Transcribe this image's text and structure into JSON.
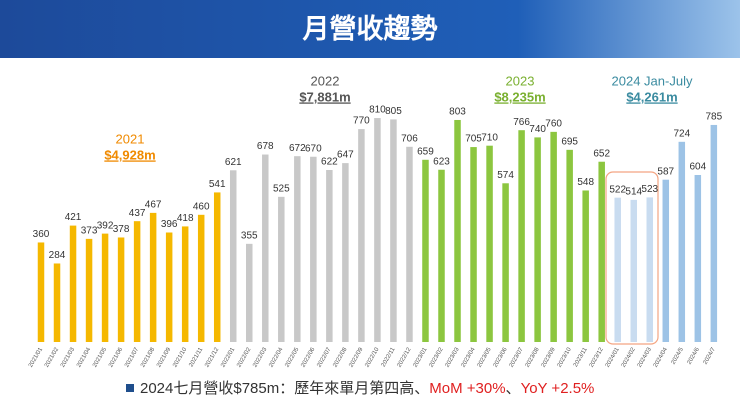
{
  "chart_data": {
    "type": "bar",
    "title": "月營收趨勢",
    "categories": [
      "2021/01",
      "2021/02",
      "2021/03",
      "2021/04",
      "2021/05",
      "2021/06",
      "2021/07",
      "2021/08",
      "2021/09",
      "2021/10",
      "2021/11",
      "2021/12",
      "2022/01",
      "2022/02",
      "2022/03",
      "2022/04",
      "2022/05",
      "2022/06",
      "2022/07",
      "2022/08",
      "2022/09",
      "2022/10",
      "2022/11",
      "2022/12",
      "2023/01",
      "2023/02",
      "2023/03",
      "2023/04",
      "2023/05",
      "2023/06",
      "2023/07",
      "2023/08",
      "2023/09",
      "2023/10",
      "2023/11",
      "2023/12",
      "2024/01",
      "2024/02",
      "2024/03",
      "2024/04",
      "2024/5",
      "2024/6",
      "2024/7"
    ],
    "values": [
      360,
      284,
      421,
      373,
      392,
      378,
      437,
      467,
      396,
      418,
      460,
      541,
      621,
      355,
      678,
      525,
      672,
      670,
      622,
      647,
      770,
      810,
      805,
      706,
      659,
      623,
      803,
      705,
      710,
      574,
      766,
      740,
      760,
      695,
      548,
      652,
      522,
      514,
      523,
      587,
      724,
      604,
      785
    ],
    "colors": [
      "#f5b800",
      "#f5b800",
      "#f5b800",
      "#f5b800",
      "#f5b800",
      "#f5b800",
      "#f5b800",
      "#f5b800",
      "#f5b800",
      "#f5b800",
      "#f5b800",
      "#f5b800",
      "#c8c8c8",
      "#c8c8c8",
      "#c8c8c8",
      "#c8c8c8",
      "#c8c8c8",
      "#c8c8c8",
      "#c8c8c8",
      "#c8c8c8",
      "#c8c8c8",
      "#c8c8c8",
      "#c8c8c8",
      "#c8c8c8",
      "#8cc63f",
      "#8cc63f",
      "#8cc63f",
      "#8cc63f",
      "#8cc63f",
      "#8cc63f",
      "#8cc63f",
      "#8cc63f",
      "#8cc63f",
      "#8cc63f",
      "#8cc63f",
      "#8cc63f",
      "#c9dcf0",
      "#c9dcf0",
      "#c9dcf0",
      "#9dc3e6",
      "#9dc3e6",
      "#9dc3e6",
      "#9dc3e6"
    ],
    "annotations": [
      {
        "year": "2021",
        "total": "$4,928m",
        "color": "#f08a00"
      },
      {
        "year": "2022",
        "total": "$7,881m",
        "color": "#555555"
      },
      {
        "year": "2023",
        "total": "$8,235m",
        "color": "#7ab030"
      },
      {
        "year": "2024 Jan-July",
        "total": "$4,261m",
        "color": "#3a8ba0"
      }
    ],
    "footer": [
      "2024七月營收$785m：歷年來單月第四高、",
      "MoM +30%",
      "、",
      "YoY +2.5%"
    ]
  }
}
